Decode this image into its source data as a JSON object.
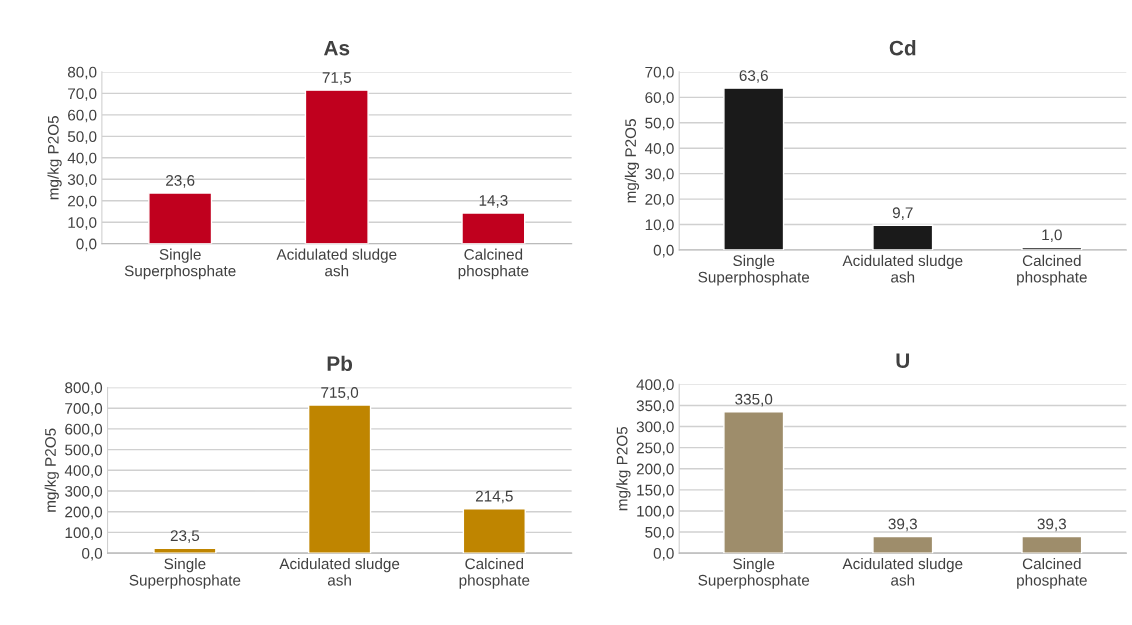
{
  "chart_data": [
    {
      "type": "bar",
      "title": "As",
      "ylabel": "mg/kg P2O5",
      "categories": [
        "Single\nSuperphosphate",
        "Acidulated sludge\nash",
        "Calcined\nphosphate"
      ],
      "values": [
        23.6,
        71.5,
        14.3
      ],
      "value_labels": [
        "23,6",
        "71,5",
        "14,3"
      ],
      "color": "#c0001e",
      "ylim": [
        0,
        80
      ],
      "yticks": [
        {
          "value": 0,
          "label": "0,0"
        },
        {
          "value": 10,
          "label": "10,0"
        },
        {
          "value": 20,
          "label": "20,0"
        },
        {
          "value": 30,
          "label": "30,0"
        },
        {
          "value": 40,
          "label": "40,0"
        },
        {
          "value": 50,
          "label": "50,0"
        },
        {
          "value": 60,
          "label": "60,0"
        },
        {
          "value": 70,
          "label": "70,0"
        },
        {
          "value": 80,
          "label": "80,0"
        }
      ],
      "grid": "y",
      "legend": false
    },
    {
      "type": "bar",
      "title": "Cd",
      "ylabel": "mg/kg P2O5",
      "categories": [
        "Single\nSuperphosphate",
        "Acidulated sludge\nash",
        "Calcined\nphosphate"
      ],
      "values": [
        63.6,
        9.7,
        1.0
      ],
      "value_labels": [
        "63,6",
        "9,7",
        "1,0"
      ],
      "color": "#1a1a1a",
      "ylim": [
        0,
        70
      ],
      "yticks": [
        {
          "value": 0,
          "label": "0,0"
        },
        {
          "value": 10,
          "label": "10,0"
        },
        {
          "value": 20,
          "label": "20,0"
        },
        {
          "value": 30,
          "label": "30,0"
        },
        {
          "value": 40,
          "label": "40,0"
        },
        {
          "value": 50,
          "label": "50,0"
        },
        {
          "value": 60,
          "label": "60,0"
        },
        {
          "value": 70,
          "label": "70,0"
        }
      ],
      "grid": "y",
      "legend": false
    },
    {
      "type": "bar",
      "title": "Pb",
      "ylabel": "mg/kg P2O5",
      "categories": [
        "Single\nSuperphosphate",
        "Acidulated sludge\nash",
        "Calcined\nphosphate"
      ],
      "values": [
        23.5,
        715.0,
        214.5
      ],
      "value_labels": [
        "23,5",
        "715,0",
        "214,5"
      ],
      "color": "#bf8500",
      "ylim": [
        0,
        800
      ],
      "yticks": [
        {
          "value": 0,
          "label": "0,0"
        },
        {
          "value": 100,
          "label": "100,0"
        },
        {
          "value": 200,
          "label": "200,0"
        },
        {
          "value": 300,
          "label": "300,0"
        },
        {
          "value": 400,
          "label": "400,0"
        },
        {
          "value": 500,
          "label": "500,0"
        },
        {
          "value": 600,
          "label": "600,0"
        },
        {
          "value": 700,
          "label": "700,0"
        },
        {
          "value": 800,
          "label": "800,0"
        }
      ],
      "grid": "y",
      "legend": false
    },
    {
      "type": "bar",
      "title": "U",
      "ylabel": "mg/kg P2O5",
      "categories": [
        "Single\nSuperphosphate",
        "Acidulated sludge\nash",
        "Calcined\nphosphate"
      ],
      "values": [
        335.0,
        39.3,
        39.3
      ],
      "value_labels": [
        "335,0",
        "39,3",
        "39,3"
      ],
      "color": "#9e8d6b",
      "ylim": [
        0,
        400
      ],
      "yticks": [
        {
          "value": 0,
          "label": "0,0"
        },
        {
          "value": 50,
          "label": "50,0"
        },
        {
          "value": 100,
          "label": "100,0"
        },
        {
          "value": 150,
          "label": "150,0"
        },
        {
          "value": 200,
          "label": "200,0"
        },
        {
          "value": 250,
          "label": "250,0"
        },
        {
          "value": 300,
          "label": "300,0"
        },
        {
          "value": 350,
          "label": "350,0"
        },
        {
          "value": 400,
          "label": "400,0"
        }
      ],
      "grid": "y",
      "legend": false
    }
  ]
}
